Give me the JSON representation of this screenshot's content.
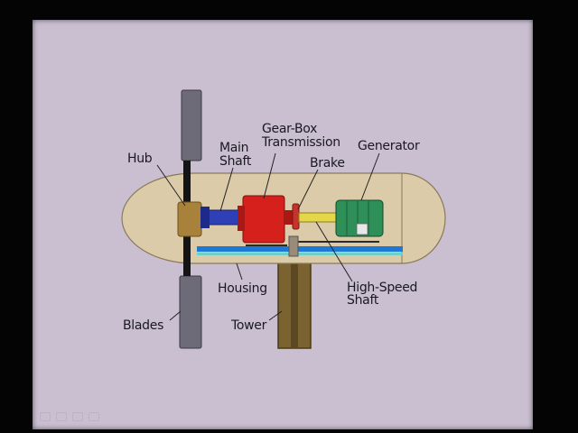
{
  "diagram": {
    "labels": {
      "hub": "Hub",
      "main_shaft_1": "Main",
      "main_shaft_2": "Shaft",
      "gearbox_1": "Gear-Box",
      "gearbox_2": "Transmission",
      "brake": "Brake",
      "generator": "Generator",
      "housing": "Housing",
      "high_speed_1": "High-Speed",
      "high_speed_2": "Shaft",
      "blades": "Blades",
      "tower": "Tower"
    },
    "colors": {
      "background": "#c9bfd1",
      "housing": "#dccba9",
      "blades": "#6e6b78",
      "hub": "#a8823a",
      "main_shaft": "#2f3fb5",
      "gearbox": "#d6201c",
      "brake": "#c7322c",
      "high_speed_shaft": "#e4d84a",
      "generator": "#2e8f58",
      "tower": "#7a6330",
      "base_stripe": "#1e78d6"
    },
    "nav_icons": [
      "prev-icon",
      "pen-icon",
      "menu-icon",
      "next-icon"
    ]
  }
}
